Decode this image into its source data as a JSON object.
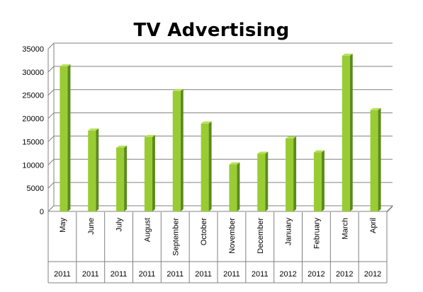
{
  "chart_data": {
    "type": "bar",
    "title": "TV Advertising",
    "xlabel": "",
    "ylabel": "",
    "categories": [
      "May",
      "June",
      "July",
      "August",
      "September",
      "October",
      "November",
      "December",
      "January",
      "February",
      "March",
      "April"
    ],
    "years": [
      "2011",
      "2011",
      "2011",
      "2011",
      "2011",
      "2011",
      "2011",
      "2011",
      "2012",
      "2012",
      "2012",
      "2012"
    ],
    "values": [
      31200,
      17400,
      13700,
      16000,
      25900,
      18900,
      10100,
      12400,
      15700,
      12700,
      33500,
      21800
    ],
    "ylim": [
      0,
      35000
    ],
    "yticks": [
      0,
      5000,
      10000,
      15000,
      20000,
      25000,
      30000,
      35000
    ],
    "grid": true,
    "legend": "none",
    "colors": {
      "bar_front": "#99cc33",
      "bar_side": "#5c8a1e",
      "bar_top": "#b8e05a",
      "grid": "#808080",
      "axis": "#808080",
      "floor": "#c0c0c0"
    }
  }
}
